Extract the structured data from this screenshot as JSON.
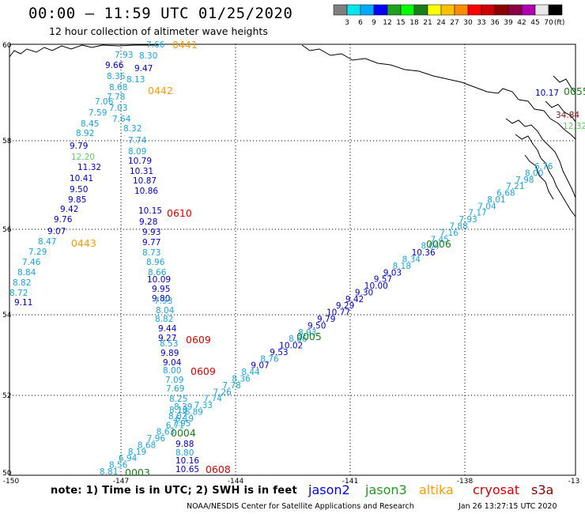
{
  "header": {
    "title": "00:00 – 11:59 UTC 01/25/2020",
    "subtitle": "12 hour collection of altimeter wave heights"
  },
  "colorbar": {
    "colors": [
      "#7f7f7f",
      "#00e5ee",
      "#00aaff",
      "#0000ff",
      "#1fa01f",
      "#00ff00",
      "#1a7d1a",
      "#ffff00",
      "#ffbf00",
      "#ff8c00",
      "#ff0000",
      "#cd0000",
      "#8b0000",
      "#8b0045",
      "#b000b0",
      "#e8e8e8",
      "#000000"
    ],
    "labels": [
      "3",
      "6",
      "9",
      "12",
      "15",
      "18",
      "21",
      "24",
      "27",
      "30",
      "33",
      "36",
      "39",
      "42",
      "45",
      "70"
    ],
    "unit": "(ft)"
  },
  "axes": {
    "lon_ticks": [
      "-150",
      "-147",
      "-144",
      "-141",
      "-138",
      "-13"
    ],
    "lat_ticks": [
      "60",
      "58",
      "56",
      "54",
      "52",
      "50"
    ]
  },
  "passes": {
    "p0441": {
      "values": [
        "7.66",
        "8.30",
        "7.93",
        "9.47",
        "9.66",
        "8.13",
        "8.36",
        "8.68",
        "7.78",
        "7.06",
        "7.03",
        "7.59",
        "7.64",
        "8.45",
        "8.32",
        "8.92",
        "7.74",
        "9.79",
        "8.09",
        "12.20",
        "10.79",
        "11.32",
        "10.31",
        "10.41",
        "10.87",
        "9.50",
        "10.86",
        "9.85",
        "10.15",
        "9.42",
        "9.28",
        "9.76",
        "9.93",
        "9.07",
        "9.77",
        "8.47",
        "8.73",
        "7.29",
        "8.96",
        "7.46",
        "8.66",
        "8.84",
        "10.09",
        "8.82",
        "9.95",
        "8.72",
        "9.80",
        "9.11"
      ],
      "times": [
        "0441",
        "0442",
        "0443"
      ]
    },
    "p0610": {
      "values": [
        "7.93",
        "8.04",
        "8.82",
        "9.44",
        "9.27",
        "8.53",
        "9.89",
        "9.04",
        "8.00",
        "7.09",
        "7.69",
        "8.25",
        "8.39",
        "8.18",
        "8.02",
        "7.95",
        "9.88",
        "8.80",
        "10.16",
        "10.65"
      ],
      "times": [
        "0610",
        "0609",
        "0609",
        "0608"
      ]
    },
    "p0006": {
      "values": [
        "6.76",
        "8.00",
        "7.98",
        "7.21",
        "6.68",
        "8.01",
        "7.04",
        "7.17",
        "7.93",
        "7.88",
        "7.16",
        "7.45",
        "8.04",
        "10.36",
        "8.34",
        "8.18",
        "9.03",
        "9.57",
        "10.00",
        "9.30",
        "9.42",
        "9.29",
        "10.77",
        "9.79",
        "9.50",
        "8.93",
        "8.86",
        "10.02",
        "9.53",
        "8.76",
        "9.07",
        "8.44",
        "8.36",
        "7.78",
        "7.26",
        "7.74",
        "7.33",
        "6.89",
        "6.19",
        "6.71",
        "8.63",
        "7.96",
        "8.68",
        "8.19",
        "6.94",
        "8.56",
        "8.81"
      ],
      "times": [
        "0006",
        "0005",
        "0004",
        "0003"
      ]
    },
    "coast": {
      "values": [
        "10.17",
        "34.84",
        "12.32"
      ],
      "times": [
        "0055"
      ]
    }
  },
  "note": "note:  1) Time is in UTC;  2) SWH is in feet",
  "legend": {
    "jason2": {
      "label": "jason2",
      "color": "#0000ff"
    },
    "jason3": {
      "label": "jason3",
      "color": "#1f9d1f"
    },
    "altika": {
      "label": "altika",
      "color": "#ff9b00"
    },
    "cryosat": {
      "label": "cryosat",
      "color": "#dd0000"
    },
    "s3a": {
      "label": "s3a",
      "color": "#8b0000"
    }
  },
  "footer": {
    "credit": "NOAA/NESDIS Center for Satellite Applications and Research",
    "generated": "Jan 26 13:27:15 UTC 2020"
  }
}
